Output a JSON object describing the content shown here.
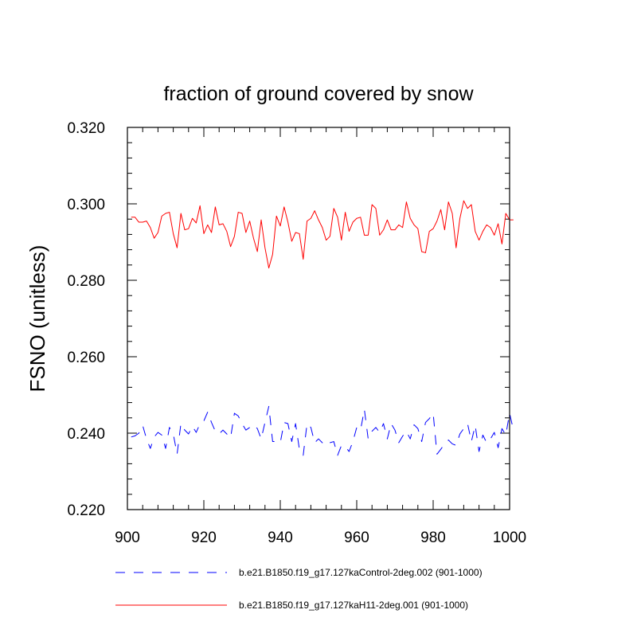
{
  "chart_data": {
    "type": "line",
    "title": "fraction of ground covered by snow",
    "xlabel": "",
    "ylabel": "FSNO  (unitless)",
    "xlim": [
      900,
      1000
    ],
    "ylim": [
      0.22,
      0.32
    ],
    "xticks": [
      900,
      920,
      940,
      960,
      980,
      1000
    ],
    "yticks": [
      0.22,
      0.24,
      0.26,
      0.28,
      0.3,
      0.32
    ],
    "ytick_labels": [
      "0.220",
      "0.240",
      "0.260",
      "0.280",
      "0.300",
      "0.320"
    ],
    "xtick_labels": [
      "900",
      "920",
      "940",
      "960",
      "980",
      "1000"
    ],
    "x_start": 901,
    "grid": false,
    "legend_position": "bottom",
    "series": [
      {
        "name": "b.e21.B1850.f19_g17.127kaControl-2deg.002 (901-1000)",
        "color": "#0000ff",
        "style": "dashed",
        "values": [
          0.239,
          0.2393,
          0.24,
          0.242,
          0.2385,
          0.236,
          0.239,
          0.2402,
          0.2395,
          0.236,
          0.2415,
          0.2398,
          0.2345,
          0.2425,
          0.2408,
          0.2398,
          0.2418,
          0.2402,
          0.2425,
          0.2432,
          0.2455,
          0.2428,
          0.2405,
          0.2398,
          0.2408,
          0.2398,
          0.2388,
          0.2452,
          0.2445,
          0.2425,
          0.2408,
          0.2415,
          0.2422,
          0.2412,
          0.2385,
          0.2428,
          0.247,
          0.2378,
          0.2378,
          0.2375,
          0.2428,
          0.2425,
          0.2378,
          0.2425,
          0.2358,
          0.2342,
          0.2425,
          0.2415,
          0.2375,
          0.2385,
          0.2375,
          0.2368,
          0.2375,
          0.2378,
          0.2342,
          0.2368,
          0.2365,
          0.2352,
          0.2378,
          0.2415,
          0.2408,
          0.2462,
          0.2385,
          0.2405,
          0.2415,
          0.2402,
          0.2425,
          0.2385,
          0.2425,
          0.2408,
          0.2375,
          0.2392,
          0.2405,
          0.2385,
          0.2422,
          0.2412,
          0.2378,
          0.2428,
          0.2438,
          0.2452,
          0.2345,
          0.2358,
          0.2372,
          0.2382,
          0.2372,
          0.2368,
          0.2398,
          0.2412,
          0.2425,
          0.2378,
          0.242,
          0.2352,
          0.2395,
          0.2375,
          0.2385,
          0.2402,
          0.2362,
          0.2412,
          0.2395,
          0.2452,
          0.2408
        ]
      },
      {
        "name": "b.e21.B1850.f19_g17.127kaH11-2deg.001 (901-1000)",
        "color": "#ff0000",
        "style": "solid",
        "values": [
          0.2965,
          0.2965,
          0.2952,
          0.2952,
          0.2955,
          0.2938,
          0.291,
          0.2925,
          0.2968,
          0.2975,
          0.2978,
          0.2922,
          0.2885,
          0.2975,
          0.2932,
          0.2935,
          0.2962,
          0.295,
          0.2995,
          0.2922,
          0.2945,
          0.2925,
          0.2992,
          0.2945,
          0.2948,
          0.2928,
          0.2888,
          0.2915,
          0.2978,
          0.2975,
          0.2925,
          0.2955,
          0.291,
          0.2875,
          0.2958,
          0.2885,
          0.2832,
          0.2868,
          0.2968,
          0.2942,
          0.2992,
          0.2952,
          0.2902,
          0.2925,
          0.2922,
          0.2855,
          0.2955,
          0.2962,
          0.2982,
          0.2958,
          0.2938,
          0.2905,
          0.2915,
          0.2988,
          0.2965,
          0.2905,
          0.2978,
          0.2928,
          0.2952,
          0.2962,
          0.2965,
          0.2918,
          0.2918,
          0.2998,
          0.2988,
          0.2918,
          0.2932,
          0.2958,
          0.2932,
          0.2932,
          0.2945,
          0.2938,
          0.3005,
          0.2962,
          0.2945,
          0.2935,
          0.2875,
          0.2872,
          0.2928,
          0.2935,
          0.2955,
          0.2985,
          0.2932,
          0.3005,
          0.2975,
          0.2885,
          0.2962,
          0.3008,
          0.2988,
          0.2998,
          0.2928,
          0.2905,
          0.2928,
          0.2945,
          0.2938,
          0.2918,
          0.2948,
          0.2895,
          0.2975,
          0.2958,
          0.2958
        ]
      }
    ]
  }
}
